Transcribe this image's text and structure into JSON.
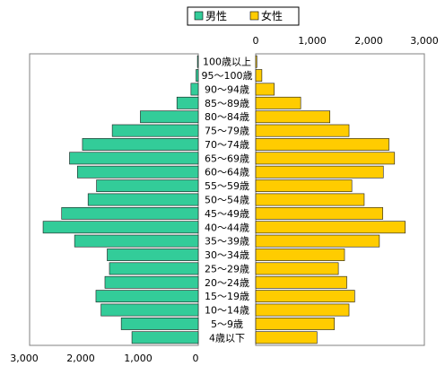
{
  "chart_data": [
    {
      "type": "bar",
      "orientation": "horizontal",
      "side": "left",
      "categories": [
        "4歳以下",
        "5〜9歳",
        "10〜14歳",
        "15〜19歳",
        "20〜24歳",
        "25〜29歳",
        "30〜34歳",
        "35〜39歳",
        "40〜44歳",
        "45〜49歳",
        "50〜54歳",
        "55〜59歳",
        "60〜64歳",
        "65〜69歳",
        "70〜74歳",
        "75〜79歳",
        "80〜84歳",
        "85〜89歳",
        "90〜94歳",
        "95〜100歳",
        "100歳以上"
      ],
      "series": [
        {
          "name": "男性",
          "values": [
            1180,
            1370,
            1730,
            1820,
            1660,
            1580,
            1620,
            2200,
            2760,
            2430,
            1960,
            1810,
            2150,
            2290,
            2060,
            1530,
            1030,
            380,
            130,
            40,
            15
          ]
        }
      ],
      "xlim": [
        0,
        3000
      ],
      "xticks": [
        "3,000",
        "2,000",
        "1,000",
        "0"
      ],
      "legend": "top-center",
      "grid": false,
      "color": "#33cc99"
    },
    {
      "type": "bar",
      "orientation": "horizontal",
      "side": "right",
      "categories": [
        "4歳以下",
        "5〜9歳",
        "10〜14歳",
        "15〜19歳",
        "20〜24歳",
        "25〜29歳",
        "30〜34歳",
        "35〜39歳",
        "40〜44歳",
        "45〜49歳",
        "50〜54歳",
        "55〜59歳",
        "60〜64歳",
        "65〜69歳",
        "70〜74歳",
        "75〜79歳",
        "80〜84歳",
        "85〜89歳",
        "90〜94歳",
        "95〜100歳",
        "100歳以上"
      ],
      "series": [
        {
          "name": "女性",
          "values": [
            1090,
            1400,
            1660,
            1760,
            1620,
            1470,
            1580,
            2200,
            2660,
            2260,
            1930,
            1710,
            2270,
            2470,
            2370,
            1660,
            1320,
            800,
            330,
            110,
            20
          ]
        }
      ],
      "xlim": [
        0,
        3000
      ],
      "xticks": [
        "0",
        "1,000",
        "2,000",
        "3,000"
      ],
      "legend": "top-center",
      "grid": false,
      "color": "#ffcc00"
    }
  ]
}
